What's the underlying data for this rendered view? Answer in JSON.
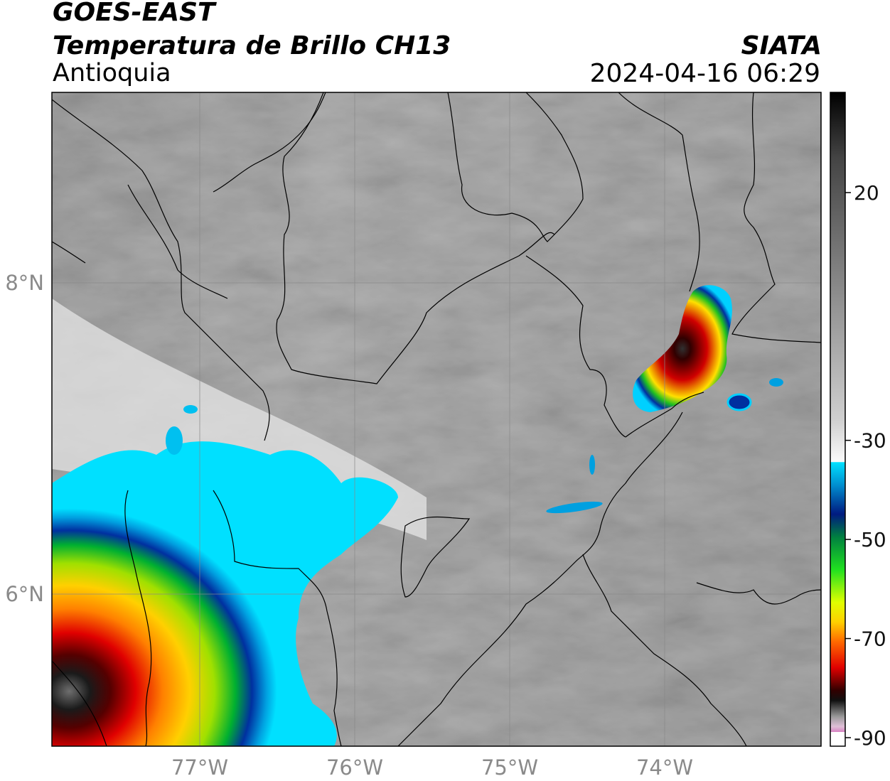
{
  "header": {
    "satellite": "GOES-EAST",
    "product": "Temperatura de Brillo CH13",
    "region": "Antioquia",
    "organization": "SIATA",
    "timestamp": "2024-04-16 06:29"
  },
  "map": {
    "lon_range": [
      -78.0,
      -73.0
    ],
    "lat_range": [
      5.0,
      9.2
    ],
    "lon_ticks": [
      {
        "value": -77,
        "label": "77°W"
      },
      {
        "value": -76,
        "label": "76°W"
      },
      {
        "value": -75,
        "label": "75°W"
      },
      {
        "value": -74,
        "label": "74°W"
      }
    ],
    "lat_ticks": [
      {
        "value": 8,
        "label": "8°N"
      },
      {
        "value": 6,
        "label": "6°N"
      }
    ],
    "grid": true
  },
  "colorbar": {
    "range": [
      -90,
      40
    ],
    "ticks": [
      {
        "value": 20,
        "label": "20"
      },
      {
        "value": -30,
        "label": "-30"
      },
      {
        "value": -50,
        "label": "-50"
      },
      {
        "value": -70,
        "label": "-70"
      },
      {
        "value": -90,
        "label": "-90"
      }
    ],
    "colors": {
      "grayscale_top": "#111111",
      "grayscale_bottom": "#f5f5f5",
      "cyan": "#00e5ff",
      "blue": "#0033aa",
      "green": "#00c000",
      "yellow": "#ffff00",
      "orange": "#ff8c00",
      "red": "#e00000",
      "dark_red": "#550000",
      "magenta": "#e060c0",
      "purple": "#802090"
    }
  }
}
